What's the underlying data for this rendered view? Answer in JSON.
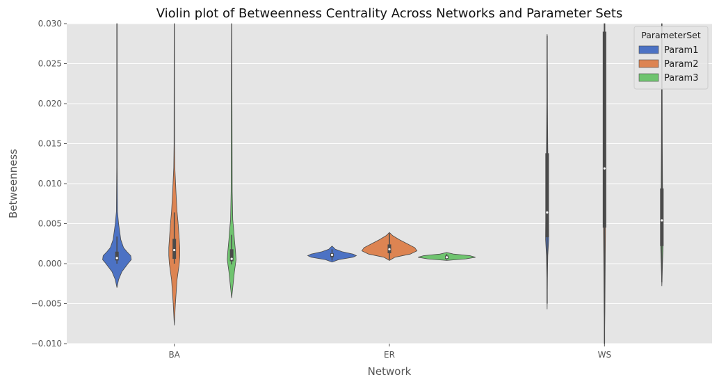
{
  "chart_data": {
    "type": "violin",
    "title": "Violin plot of Betweenness Centrality Across Networks and Parameter Sets",
    "xlabel": "Network",
    "ylabel": "Betweenness",
    "ylim": [
      -0.01,
      0.03
    ],
    "yticks": [
      "−0.010",
      "−0.005",
      "0.000",
      "0.005",
      "0.010",
      "0.015",
      "0.020",
      "0.025",
      "0.030"
    ],
    "ytick_values": [
      -0.01,
      -0.005,
      0.0,
      0.005,
      0.01,
      0.015,
      0.02,
      0.025,
      0.03
    ],
    "categories": [
      "BA",
      "ER",
      "WS"
    ],
    "legend": {
      "title": "ParameterSet",
      "position": "top-right",
      "entries": [
        "Param1",
        "Param2",
        "Param3"
      ]
    },
    "grid": true,
    "colors": {
      "Param1": "#4c72c4",
      "Param2": "#dd8452",
      "Param3": "#6fc46f",
      "background": "#e5e5e5",
      "grid": "#ffffff",
      "box": "#4a4a4a"
    },
    "series": [
      {
        "name": "Param1",
        "violins": [
          {
            "category": "BA",
            "q1": 0.0004,
            "median": 0.0007,
            "q3": 0.0015,
            "whisker_low": 0.0,
            "whisker_high": 0.0034,
            "density": [
              [
                -0.003,
                0
              ],
              [
                -0.002,
                0.03
              ],
              [
                -0.001,
                0.09
              ],
              [
                0.0,
                0.2
              ],
              [
                0.0005,
                0.26
              ],
              [
                0.001,
                0.25
              ],
              [
                0.0015,
                0.18
              ],
              [
                0.002,
                0.12
              ],
              [
                0.003,
                0.07
              ],
              [
                0.004,
                0.05
              ],
              [
                0.005,
                0.03
              ],
              [
                0.0065,
                0.01
              ],
              [
                0.012,
                0.004
              ],
              [
                0.03,
                0.004
              ]
            ]
          },
          {
            "category": "ER",
            "q1": 0.0008,
            "median": 0.0011,
            "q3": 0.0013,
            "whisker_low": 0.0004,
            "whisker_high": 0.0018,
            "density": [
              [
                0.0002,
                0
              ],
              [
                0.0005,
                0.12
              ],
              [
                0.0008,
                0.38
              ],
              [
                0.001,
                0.44
              ],
              [
                0.0012,
                0.38
              ],
              [
                0.0015,
                0.18
              ],
              [
                0.0018,
                0.06
              ],
              [
                0.0022,
                0
              ]
            ]
          },
          {
            "category": "WS",
            "q1": 0.0033,
            "median": 0.0064,
            "q3": 0.0138,
            "whisker_low": -0.005,
            "whisker_high": 0.0285,
            "density": [
              [
                -0.0057,
                0
              ],
              [
                -0.002,
                0.005
              ],
              [
                0.001,
                0.012
              ],
              [
                0.003,
                0.028
              ],
              [
                0.005,
                0.025
              ],
              [
                0.008,
                0.02
              ],
              [
                0.012,
                0.015
              ],
              [
                0.016,
                0.01
              ],
              [
                0.02,
                0.006
              ],
              [
                0.024,
                0.005
              ],
              [
                0.0287,
                0
              ]
            ]
          }
        ]
      },
      {
        "name": "Param2",
        "violins": [
          {
            "category": "BA",
            "q1": 0.0006,
            "median": 0.0017,
            "q3": 0.0031,
            "whisker_low": 0.0,
            "whisker_high": 0.0064,
            "density": [
              [
                -0.0077,
                0
              ],
              [
                -0.005,
                0.02
              ],
              [
                -0.002,
                0.05
              ],
              [
                0.0,
                0.09
              ],
              [
                0.001,
                0.1
              ],
              [
                0.002,
                0.1
              ],
              [
                0.003,
                0.09
              ],
              [
                0.005,
                0.07
              ],
              [
                0.0065,
                0.05
              ],
              [
                0.009,
                0.03
              ],
              [
                0.012,
                0.01
              ],
              [
                0.015,
                0.005
              ],
              [
                0.03,
                0.003
              ]
            ]
          },
          {
            "category": "ER",
            "q1": 0.0013,
            "median": 0.0018,
            "q3": 0.0024,
            "whisker_low": 0.0005,
            "whisker_high": 0.0038,
            "density": [
              [
                0.0004,
                0
              ],
              [
                0.0008,
                0.1
              ],
              [
                0.0012,
                0.38
              ],
              [
                0.0016,
                0.5
              ],
              [
                0.002,
                0.46
              ],
              [
                0.0025,
                0.32
              ],
              [
                0.003,
                0.18
              ],
              [
                0.0035,
                0.06
              ],
              [
                0.0039,
                0
              ]
            ]
          },
          {
            "category": "WS",
            "q1": 0.0045,
            "median": 0.0119,
            "q3": 0.029,
            "whisker_low": -0.01,
            "whisker_high": 0.03,
            "density": [
              [
                -0.01,
                0
              ],
              [
                -0.006,
                0.007
              ],
              [
                -0.002,
                0.011
              ],
              [
                0.001,
                0.014
              ],
              [
                0.004,
                0.018
              ],
              [
                0.008,
                0.016
              ],
              [
                0.012,
                0.014
              ],
              [
                0.018,
                0.012
              ],
              [
                0.024,
                0.01
              ],
              [
                0.03,
                0.008
              ]
            ]
          }
        ]
      },
      {
        "name": "Param3",
        "violins": [
          {
            "category": "BA",
            "q1": 0.0003,
            "median": 0.0006,
            "q3": 0.0018,
            "whisker_low": -0.0001,
            "whisker_high": 0.0036,
            "density": [
              [
                -0.0043,
                0
              ],
              [
                -0.003,
                0.02
              ],
              [
                -0.001,
                0.05
              ],
              [
                0.0,
                0.07
              ],
              [
                0.0005,
                0.08
              ],
              [
                0.0015,
                0.07
              ],
              [
                0.003,
                0.05
              ],
              [
                0.004,
                0.04
              ],
              [
                0.0055,
                0.02
              ],
              [
                0.009,
                0.01
              ],
              [
                0.03,
                0.003
              ]
            ]
          },
          {
            "category": "ER",
            "q1": 0.0006,
            "median": 0.0008,
            "q3": 0.001,
            "whisker_low": 0.0005,
            "whisker_high": 0.0012,
            "density": [
              [
                0.0004,
                0
              ],
              [
                0.0006,
                0.35
              ],
              [
                0.0008,
                0.52
              ],
              [
                0.001,
                0.42
              ],
              [
                0.0012,
                0.12
              ],
              [
                0.0014,
                0
              ]
            ]
          },
          {
            "category": "WS",
            "q1": 0.0022,
            "median": 0.0054,
            "q3": 0.0094,
            "whisker_low": -0.0023,
            "whisker_high": 0.03,
            "density": [
              [
                -0.0028,
                0
              ],
              [
                -0.001,
                0.008
              ],
              [
                0.0,
                0.012
              ],
              [
                0.002,
                0.022
              ],
              [
                0.004,
                0.022
              ],
              [
                0.007,
                0.016
              ],
              [
                0.01,
                0.012
              ],
              [
                0.015,
                0.008
              ],
              [
                0.02,
                0.006
              ],
              [
                0.03,
                0.004
              ]
            ]
          }
        ]
      }
    ]
  }
}
